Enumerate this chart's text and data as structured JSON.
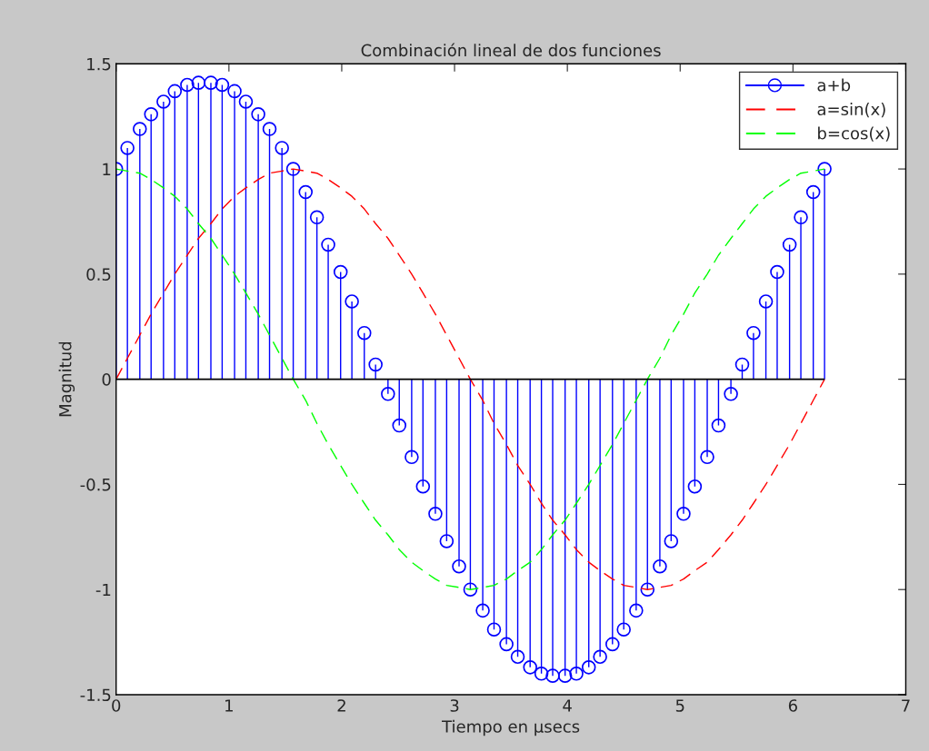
{
  "chart_data": {
    "type": "line",
    "title": "Combinación lineal de dos funciones",
    "xlabel": "Tiempo en µsecs",
    "ylabel": "Magnitud",
    "x": [
      0,
      0.1,
      0.21,
      0.31,
      0.42,
      0.52,
      0.63,
      0.73,
      0.84,
      0.94,
      1.05,
      1.15,
      1.26,
      1.36,
      1.47,
      1.57,
      1.68,
      1.78,
      1.88,
      1.99,
      2.09,
      2.2,
      2.3,
      2.41,
      2.51,
      2.62,
      2.72,
      2.83,
      2.93,
      3.04,
      3.14,
      3.25,
      3.35,
      3.46,
      3.56,
      3.67,
      3.77,
      3.87,
      3.98,
      4.08,
      4.19,
      4.29,
      4.4,
      4.5,
      4.61,
      4.71,
      4.82,
      4.92,
      5.03,
      5.13,
      5.24,
      5.34,
      5.45,
      5.55,
      5.65,
      5.76,
      5.86,
      5.97,
      6.07,
      6.18,
      6.28
    ],
    "series": [
      {
        "name": "a+b",
        "type": "lollipop",
        "color": "#0000ff",
        "marker": "circle",
        "line_style": "solid",
        "values": [
          1.0,
          1.1,
          1.19,
          1.26,
          1.32,
          1.37,
          1.4,
          1.41,
          1.41,
          1.4,
          1.37,
          1.32,
          1.26,
          1.19,
          1.1,
          1.0,
          0.89,
          0.77,
          0.64,
          0.51,
          0.37,
          0.22,
          0.07,
          -0.07,
          -0.22,
          -0.37,
          -0.51,
          -0.64,
          -0.77,
          -0.89,
          -1.0,
          -1.1,
          -1.19,
          -1.26,
          -1.32,
          -1.37,
          -1.4,
          -1.41,
          -1.41,
          -1.4,
          -1.37,
          -1.32,
          -1.26,
          -1.19,
          -1.1,
          -1.0,
          -0.89,
          -0.77,
          -0.64,
          -0.51,
          -0.37,
          -0.22,
          -0.07,
          0.07,
          0.22,
          0.37,
          0.51,
          0.64,
          0.77,
          0.89,
          1.0
        ]
      },
      {
        "name": "a=sin(x)",
        "color": "#ff0000",
        "marker": "none",
        "line_style": "dashed",
        "values": [
          0,
          0.1,
          0.21,
          0.31,
          0.41,
          0.5,
          0.59,
          0.67,
          0.74,
          0.81,
          0.87,
          0.91,
          0.95,
          0.98,
          0.99,
          1.0,
          0.99,
          0.98,
          0.95,
          0.91,
          0.87,
          0.81,
          0.74,
          0.67,
          0.59,
          0.5,
          0.41,
          0.31,
          0.21,
          0.1,
          0,
          -0.1,
          -0.21,
          -0.31,
          -0.41,
          -0.5,
          -0.59,
          -0.67,
          -0.74,
          -0.81,
          -0.87,
          -0.91,
          -0.95,
          -0.98,
          -0.99,
          -1.0,
          -0.99,
          -0.98,
          -0.95,
          -0.91,
          -0.87,
          -0.81,
          -0.74,
          -0.67,
          -0.59,
          -0.5,
          -0.41,
          -0.31,
          -0.21,
          -0.1,
          0
        ]
      },
      {
        "name": "b=cos(x)",
        "color": "#00ff00",
        "marker": "none",
        "line_style": "dashed",
        "values": [
          1.0,
          0.99,
          0.98,
          0.95,
          0.91,
          0.87,
          0.81,
          0.74,
          0.67,
          0.59,
          0.5,
          0.41,
          0.31,
          0.21,
          0.1,
          0,
          -0.1,
          -0.21,
          -0.31,
          -0.41,
          -0.5,
          -0.59,
          -0.67,
          -0.74,
          -0.81,
          -0.87,
          -0.91,
          -0.95,
          -0.98,
          -0.99,
          -1.0,
          -0.99,
          -0.98,
          -0.95,
          -0.91,
          -0.87,
          -0.81,
          -0.74,
          -0.67,
          -0.59,
          -0.5,
          -0.41,
          -0.31,
          -0.21,
          -0.1,
          0,
          0.1,
          0.21,
          0.31,
          0.41,
          0.5,
          0.59,
          0.67,
          0.74,
          0.81,
          0.87,
          0.91,
          0.95,
          0.98,
          0.99,
          1.0
        ]
      }
    ],
    "xlim": [
      0,
      7
    ],
    "ylim": [
      -1.5,
      1.5
    ],
    "xticks": [
      0,
      1,
      2,
      3,
      4,
      5,
      6,
      7
    ],
    "yticks": [
      -1.5,
      -1,
      -0.5,
      0,
      0.5,
      1,
      1.5
    ],
    "ref_lines": [
      {
        "axis": "y",
        "value": 0,
        "color": "#000000",
        "line_style": "solid"
      }
    ],
    "grid": false,
    "legend": "top right"
  }
}
